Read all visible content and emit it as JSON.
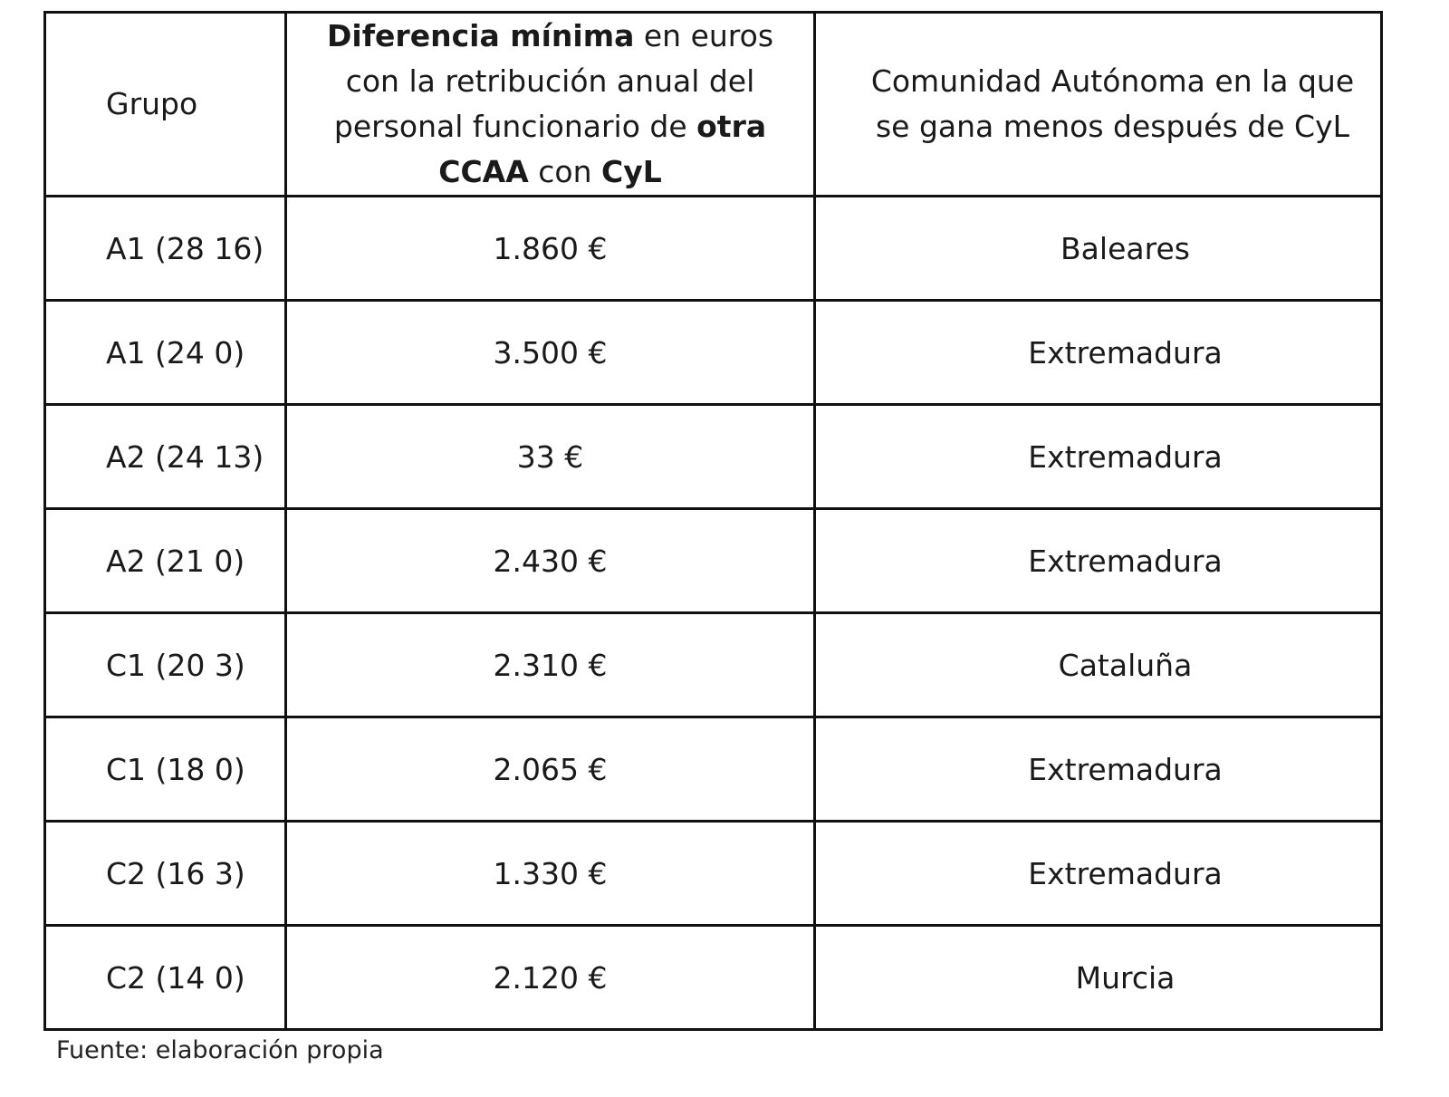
{
  "table": {
    "headers": {
      "group": "Grupo",
      "diff": {
        "p1_bold": "Diferencia mínima",
        "p2": " en euros con la  retribución anual del personal funcionario de ",
        "p3_bold": "otra CCAA",
        "p4": " con ",
        "p5_bold": "CyL"
      },
      "region": "Comunidad Autónoma en la que se gana menos después de CyL"
    },
    "rows": [
      {
        "group": "A1 (28 16)",
        "diff": "1.860 €",
        "region": "Baleares"
      },
      {
        "group": "A1 (24 0)",
        "diff": "3.500 €",
        "region": "Extremadura"
      },
      {
        "group": "A2 (24 13)",
        "diff": "33 €",
        "region": "Extremadura"
      },
      {
        "group": "A2 (21 0)",
        "diff": "2.430 €",
        "region": "Extremadura"
      },
      {
        "group": "C1 (20 3)",
        "diff": "2.310 €",
        "region": "Cataluña"
      },
      {
        "group": "C1 (18 0)",
        "diff": "2.065 €",
        "region": "Extremadura"
      },
      {
        "group": "C2 (16 3)",
        "diff": "1.330 €",
        "region": "Extremadura"
      },
      {
        "group": "C2 (14 0)",
        "diff": "2.120 €",
        "region": "Murcia"
      }
    ]
  },
  "footer": "Fuente: elaboración propia",
  "colors": {
    "border": "#111111",
    "text": "#1a1a1a",
    "background": "#ffffff"
  }
}
